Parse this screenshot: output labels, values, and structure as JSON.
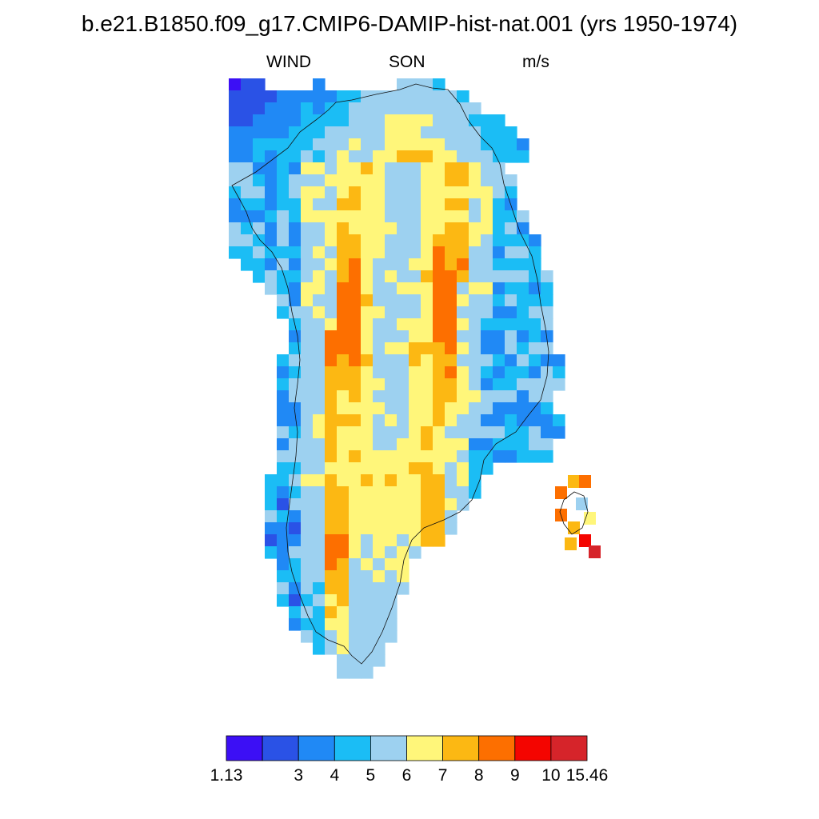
{
  "title": "b.e21.B1850.f09_g17.CMIP6-DAMIP-hist-nat.001 (yrs 1950-1974)",
  "subtitle": {
    "left": "WIND",
    "center": "SON",
    "right": "m/s"
  },
  "chart_data": {
    "type": "heatmap",
    "variable": "WIND",
    "season": "SON",
    "units": "m/s",
    "region": "Greenland",
    "colorbar": {
      "colors": [
        "#3c0ff5",
        "#2a52e6",
        "#2089f5",
        "#1bbdf5",
        "#9dd1f0",
        "#fff67a",
        "#fcb813",
        "#fd6f00",
        "#f40500",
        "#d6242a"
      ],
      "labels": [
        "1.13",
        "3",
        "4",
        "5",
        "6",
        "7",
        "8",
        "9",
        "10",
        "15.46"
      ],
      "boundaries": [
        1.13,
        3,
        4,
        5,
        6,
        7,
        8,
        9,
        10,
        15.46
      ]
    }
  }
}
